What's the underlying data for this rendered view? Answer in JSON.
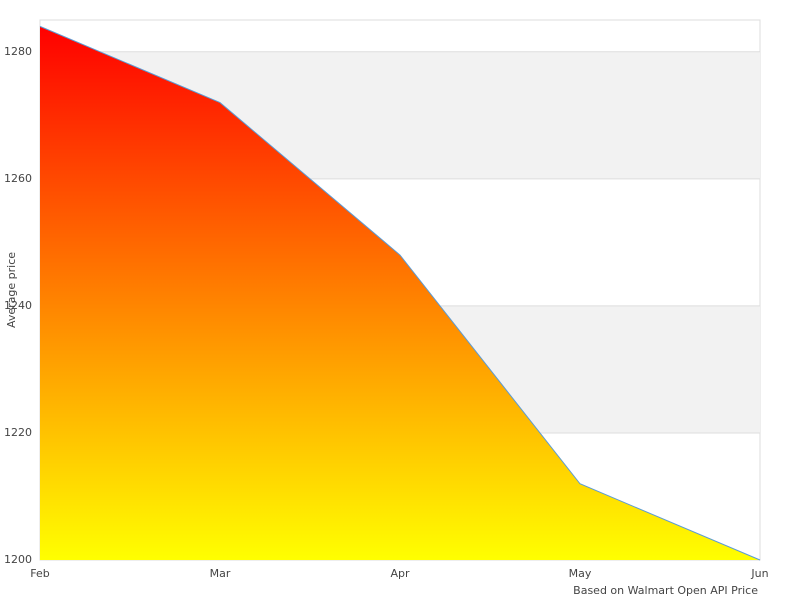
{
  "chart_data": {
    "type": "area",
    "y_label": "Average price",
    "credit": "Based on Walmart Open API Price",
    "categories": [
      "Feb",
      "Mar",
      "Apr",
      "May",
      "Jun"
    ],
    "values": [
      1284,
      1272,
      1248,
      1212,
      1200
    ],
    "ylim": [
      1200,
      1285
    ],
    "yticks": [
      1200,
      1220,
      1240,
      1260,
      1280
    ],
    "gradient": [
      "#ff0000",
      "#ffff00"
    ],
    "line_color": "#5b9bd5",
    "band_color": "#f2f2f2",
    "grid": true
  }
}
